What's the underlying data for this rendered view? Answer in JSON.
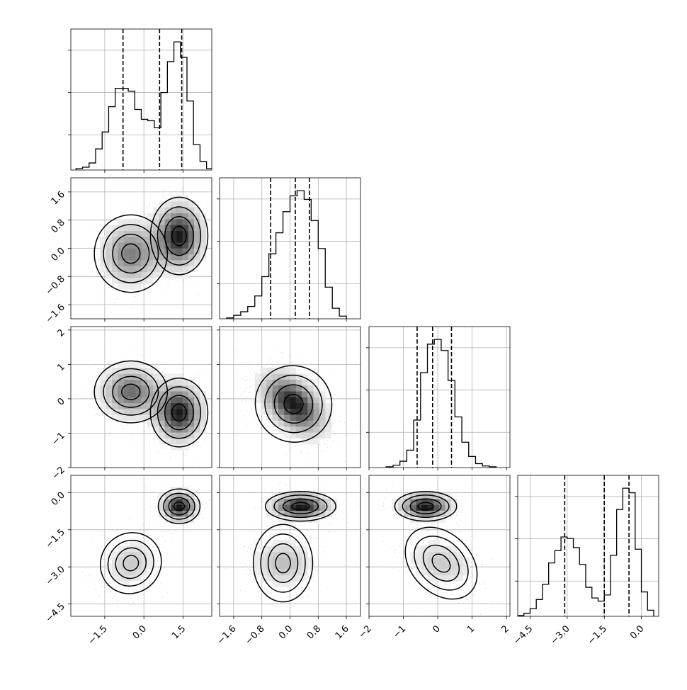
{
  "chart_data": {
    "type": "corner",
    "title": "",
    "n_params": 4,
    "axis_ticks": [
      {
        "values": [
          -1.5,
          0.0,
          1.5
        ],
        "labels": [
          "−1.5",
          "0.0",
          "1.5"
        ],
        "range": [
          -2.8,
          2.6
        ]
      },
      {
        "values": [
          -1.6,
          -0.8,
          0.0,
          0.8,
          1.6
        ],
        "labels": [
          "−1.6",
          "−0.8",
          "0.0",
          "0.8",
          "1.6"
        ],
        "range": [
          -2.0,
          2.0
        ]
      },
      {
        "values": [
          -2,
          -1,
          0,
          1,
          2
        ],
        "labels": [
          "−2",
          "−1",
          "0",
          "1",
          "2"
        ],
        "range": [
          -2.0,
          2.1
        ]
      },
      {
        "values": [
          -4.5,
          -3.0,
          -1.5,
          0.0
        ],
        "labels": [
          "−4.5",
          "−3.0",
          "−1.5",
          "0.0"
        ],
        "range": [
          -5.0,
          0.7
        ]
      }
    ],
    "histograms": [
      {
        "param": 0,
        "bin_edges": [
          -2.6,
          -2.35,
          -2.1,
          -1.85,
          -1.6,
          -1.35,
          -1.1,
          -0.85,
          -0.6,
          -0.35,
          -0.1,
          0.15,
          0.4,
          0.65,
          0.9,
          1.15,
          1.4,
          1.65,
          1.9,
          2.15,
          2.4,
          2.65
        ],
        "counts": [
          0.01,
          0.02,
          0.05,
          0.15,
          0.27,
          0.45,
          0.58,
          0.58,
          0.56,
          0.43,
          0.36,
          0.35,
          0.3,
          0.55,
          0.77,
          0.91,
          0.8,
          0.49,
          0.18,
          0.06,
          0.01
        ],
        "quantiles": [
          -0.8,
          0.6,
          1.45
        ]
      },
      {
        "param": 1,
        "bin_edges": [
          -1.8,
          -1.6,
          -1.4,
          -1.2,
          -1.0,
          -0.8,
          -0.6,
          -0.4,
          -0.2,
          0.0,
          0.2,
          0.4,
          0.6,
          0.8,
          1.0,
          1.2,
          1.4,
          1.6
        ],
        "counts": [
          0.005,
          0.02,
          0.04,
          0.07,
          0.13,
          0.24,
          0.37,
          0.49,
          0.61,
          0.7,
          0.73,
          0.68,
          0.56,
          0.4,
          0.18,
          0.06,
          0.015
        ],
        "quantiles": [
          -0.55,
          0.15,
          0.55
        ]
      },
      {
        "param": 2,
        "bin_edges": [
          -1.5,
          -1.3,
          -1.1,
          -0.9,
          -0.7,
          -0.5,
          -0.3,
          -0.1,
          0.1,
          0.3,
          0.5,
          0.7,
          0.9,
          1.1,
          1.3,
          1.5,
          1.7
        ],
        "counts": [
          0.005,
          0.015,
          0.04,
          0.11,
          0.3,
          0.6,
          0.78,
          0.81,
          0.74,
          0.55,
          0.32,
          0.16,
          0.07,
          0.025,
          0.01,
          0.005
        ],
        "quantiles": [
          -0.6,
          -0.15,
          0.4
        ]
      },
      {
        "param": 3,
        "bin_edges": [
          -5.0,
          -4.75,
          -4.5,
          -4.25,
          -4.0,
          -3.75,
          -3.5,
          -3.25,
          -3.0,
          -2.75,
          -2.5,
          -2.25,
          -2.0,
          -1.75,
          -1.5,
          -1.25,
          -1.0,
          -0.75,
          -0.5,
          -0.25,
          0.0,
          0.25,
          0.5
        ],
        "counts": [
          0.005,
          0.02,
          0.05,
          0.11,
          0.21,
          0.35,
          0.43,
          0.52,
          0.51,
          0.45,
          0.34,
          0.19,
          0.12,
          0.1,
          0.14,
          0.4,
          0.7,
          0.84,
          0.81,
          0.44,
          0.16,
          0.04
        ],
        "quantiles": [
          -3.1,
          -1.5,
          -0.5
        ]
      }
    ],
    "scatter_clusters": [
      {
        "pair": [
          0,
          1
        ],
        "clusters": [
          {
            "cx": -0.5,
            "cy": -0.15,
            "sx": 0.7,
            "sy": 0.55,
            "rho": 0.0,
            "w": 0.45
          },
          {
            "cx": 1.35,
            "cy": 0.35,
            "sx": 0.55,
            "sy": 0.55,
            "rho": 0.0,
            "w": 0.55
          }
        ]
      },
      {
        "pair": [
          0,
          2
        ],
        "clusters": [
          {
            "cx": -0.5,
            "cy": 0.2,
            "sx": 0.7,
            "sy": 0.45,
            "rho": 0.0,
            "w": 0.45
          },
          {
            "cx": 1.35,
            "cy": -0.4,
            "sx": 0.55,
            "sy": 0.5,
            "rho": 0.0,
            "w": 0.55
          }
        ]
      },
      {
        "pair": [
          1,
          2
        ],
        "clusters": [
          {
            "cx": 0.1,
            "cy": -0.15,
            "sx": 0.55,
            "sy": 0.55,
            "rho": -0.45,
            "w": 1.0
          }
        ]
      },
      {
        "pair": [
          0,
          3
        ],
        "clusters": [
          {
            "cx": -0.5,
            "cy": -2.85,
            "sx": 0.6,
            "sy": 0.6,
            "rho": 0.2,
            "w": 0.45
          },
          {
            "cx": 1.35,
            "cy": -0.55,
            "sx": 0.4,
            "sy": 0.35,
            "rho": 0.0,
            "w": 0.55
          }
        ]
      },
      {
        "pair": [
          1,
          3
        ],
        "clusters": [
          {
            "cx": -0.2,
            "cy": -2.85,
            "sx": 0.55,
            "sy": 0.6,
            "rho": 0.0,
            "w": 0.45
          },
          {
            "cx": 0.3,
            "cy": -0.55,
            "sx": 0.5,
            "sy": 0.3,
            "rho": 0.0,
            "w": 0.55
          }
        ]
      },
      {
        "pair": [
          2,
          3
        ],
        "clusters": [
          {
            "cx": 0.1,
            "cy": -2.85,
            "sx": 0.6,
            "sy": 0.6,
            "rho": -0.2,
            "w": 0.45
          },
          {
            "cx": -0.35,
            "cy": -0.55,
            "sx": 0.45,
            "sy": 0.3,
            "rho": 0.0,
            "w": 0.55
          }
        ]
      }
    ],
    "grid": true,
    "quantile_lines": "dashed"
  }
}
